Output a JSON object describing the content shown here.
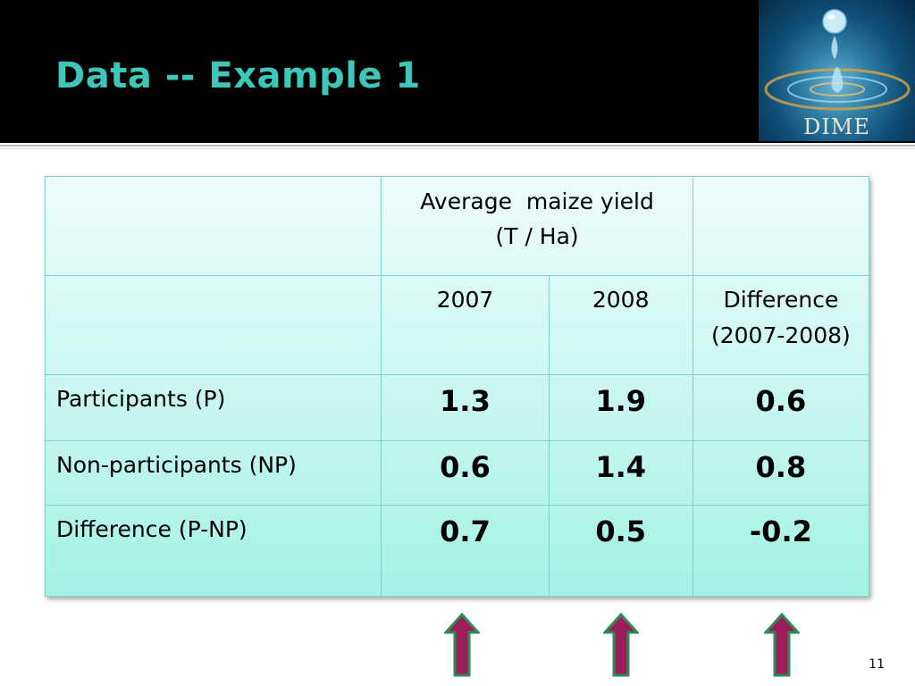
{
  "slide": {
    "title": "Data -- Example 1",
    "logo_text": "DIME",
    "page_number": "11"
  },
  "table": {
    "header": {
      "measure_line1": "Average  maize yield",
      "measure_line2": "(T / Ha)"
    },
    "columns": {
      "col1": "2007",
      "col2": "2008",
      "col3_line1": "Difference",
      "col3_line2": "(2007-2008)"
    },
    "rows": [
      {
        "label": "Participants (P)",
        "v2007": "1.3",
        "v2008": "1.9",
        "diff": "0.6"
      },
      {
        "label": "Non-participants (NP)",
        "v2007": "0.6",
        "v2008": "1.4",
        "diff": "0.8"
      },
      {
        "label": "Difference (P-NP)",
        "v2007": "0.7",
        "v2008": "0.5",
        "diff": "-0.2"
      }
    ]
  },
  "colors": {
    "title": "#3ec6b9",
    "arrow_fill": "#9b1d5a",
    "arrow_outline": "#2e8b57"
  },
  "icons": {
    "logo": "water-drop-logo",
    "arrows": [
      "up-arrow-icon",
      "up-arrow-icon",
      "up-arrow-icon"
    ]
  }
}
